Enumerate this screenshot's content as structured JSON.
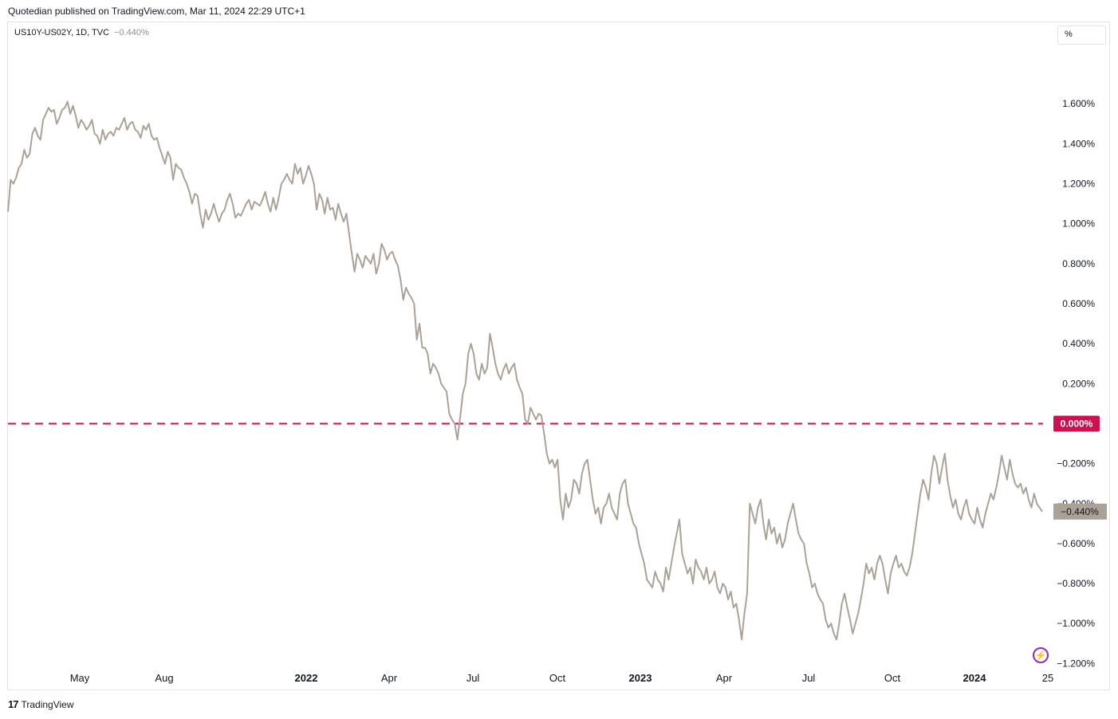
{
  "publisher": "Quotedian published on TradingView.com, Mar 11, 2024 22:29 UTC+1",
  "legend": {
    "symbol": "US10Y-US02Y, 1D, TVC",
    "value": "−0.440%"
  },
  "scale_button": "%",
  "footer": {
    "logo": "17",
    "brand": "TradingView"
  },
  "colors": {
    "series": "#aba297",
    "zero_line": "#cc1050",
    "grid_text": "#131722"
  },
  "chart_data": {
    "type": "line",
    "series": [
      {
        "values": [
          1.06,
          1.22,
          1.2,
          1.23,
          1.28,
          1.3,
          1.37,
          1.33,
          1.35,
          1.45,
          1.48,
          1.44,
          1.42,
          1.52,
          1.55,
          1.58,
          1.56,
          1.57,
          1.5,
          1.53,
          1.57,
          1.58,
          1.61,
          1.55,
          1.59,
          1.54,
          1.48,
          1.52,
          1.5,
          1.47,
          1.49,
          1.52,
          1.45,
          1.44,
          1.4,
          1.47,
          1.42,
          1.45,
          1.46,
          1.44,
          1.48,
          1.47,
          1.5,
          1.53,
          1.47,
          1.5,
          1.51,
          1.47,
          1.46,
          1.43,
          1.49,
          1.47,
          1.5,
          1.44,
          1.42,
          1.43,
          1.38,
          1.34,
          1.3,
          1.36,
          1.33,
          1.22,
          1.3,
          1.28,
          1.27,
          1.23,
          1.2,
          1.16,
          1.1,
          1.15,
          1.14,
          1.05,
          0.98,
          1.07,
          1.02,
          1.05,
          1.1,
          1.05,
          1.01,
          1.05,
          1.07,
          1.12,
          1.15,
          1.1,
          1.03,
          1.05,
          1.04,
          1.07,
          1.1,
          1.12,
          1.07,
          1.11,
          1.1,
          1.09,
          1.12,
          1.16,
          1.1,
          1.06,
          1.13,
          1.07,
          1.13,
          1.2,
          1.22,
          1.25,
          1.22,
          1.2,
          1.3,
          1.25,
          1.28,
          1.2,
          1.24,
          1.29,
          1.25,
          1.2,
          1.07,
          1.15,
          1.12,
          1.05,
          1.13,
          1.07,
          1.08,
          1.02,
          1.1,
          1.05,
          1.01,
          1.05,
          0.95,
          0.85,
          0.76,
          0.85,
          0.82,
          0.78,
          0.84,
          0.82,
          0.8,
          0.85,
          0.75,
          0.8,
          0.9,
          0.87,
          0.82,
          0.85,
          0.86,
          0.82,
          0.79,
          0.72,
          0.62,
          0.68,
          0.65,
          0.63,
          0.6,
          0.42,
          0.5,
          0.38,
          0.38,
          0.35,
          0.25,
          0.3,
          0.28,
          0.25,
          0.2,
          0.18,
          0.16,
          0.05,
          0.02,
          0.0,
          -0.08,
          0.03,
          0.15,
          0.2,
          0.35,
          0.4,
          0.35,
          0.25,
          0.22,
          0.3,
          0.25,
          0.28,
          0.45,
          0.38,
          0.3,
          0.25,
          0.22,
          0.27,
          0.3,
          0.25,
          0.28,
          0.3,
          0.22,
          0.18,
          0.15,
          0.02,
          0.0,
          0.08,
          0.05,
          0.02,
          0.05,
          0.04,
          -0.05,
          -0.15,
          -0.2,
          -0.18,
          -0.22,
          -0.18,
          -0.38,
          -0.48,
          -0.35,
          -0.42,
          -0.38,
          -0.28,
          -0.3,
          -0.35,
          -0.25,
          -0.2,
          -0.18,
          -0.28,
          -0.38,
          -0.45,
          -0.42,
          -0.5,
          -0.42,
          -0.4,
          -0.35,
          -0.42,
          -0.45,
          -0.48,
          -0.35,
          -0.3,
          -0.28,
          -0.4,
          -0.45,
          -0.5,
          -0.52,
          -0.6,
          -0.65,
          -0.7,
          -0.78,
          -0.8,
          -0.82,
          -0.74,
          -0.78,
          -0.8,
          -0.84,
          -0.72,
          -0.78,
          -0.7,
          -0.62,
          -0.55,
          -0.48,
          -0.65,
          -0.7,
          -0.75,
          -0.72,
          -0.8,
          -0.68,
          -0.72,
          -0.74,
          -0.78,
          -0.72,
          -0.8,
          -0.78,
          -0.74,
          -0.82,
          -0.85,
          -0.8,
          -0.82,
          -0.88,
          -0.84,
          -0.92,
          -0.9,
          -0.98,
          -1.08,
          -0.95,
          -0.85,
          -0.4,
          -0.45,
          -0.5,
          -0.42,
          -0.38,
          -0.5,
          -0.58,
          -0.48,
          -0.55,
          -0.52,
          -0.6,
          -0.55,
          -0.62,
          -0.58,
          -0.5,
          -0.45,
          -0.4,
          -0.48,
          -0.55,
          -0.58,
          -0.6,
          -0.7,
          -0.75,
          -0.82,
          -0.8,
          -0.85,
          -0.88,
          -0.9,
          -0.98,
          -1.02,
          -1.0,
          -1.05,
          -1.08,
          -1.0,
          -0.9,
          -0.85,
          -0.92,
          -0.98,
          -1.05,
          -1.0,
          -0.95,
          -0.88,
          -0.8,
          -0.7,
          -0.75,
          -0.72,
          -0.78,
          -0.7,
          -0.66,
          -0.7,
          -0.78,
          -0.85,
          -0.75,
          -0.7,
          -0.66,
          -0.72,
          -0.7,
          -0.74,
          -0.76,
          -0.72,
          -0.65,
          -0.55,
          -0.45,
          -0.35,
          -0.28,
          -0.32,
          -0.38,
          -0.25,
          -0.16,
          -0.2,
          -0.3,
          -0.22,
          -0.15,
          -0.28,
          -0.36,
          -0.42,
          -0.38,
          -0.45,
          -0.48,
          -0.42,
          -0.38,
          -0.45,
          -0.48,
          -0.5,
          -0.42,
          -0.48,
          -0.52,
          -0.45,
          -0.4,
          -0.35,
          -0.38,
          -0.32,
          -0.25,
          -0.16,
          -0.22,
          -0.28,
          -0.18,
          -0.25,
          -0.3,
          -0.32,
          -0.3,
          -0.35,
          -0.32,
          -0.38,
          -0.42,
          -0.35,
          -0.4,
          -0.42,
          -0.44
        ]
      }
    ],
    "x_ticks": [
      {
        "label": "May",
        "bold": false
      },
      {
        "label": "Aug",
        "bold": false
      },
      {
        "label": "2022",
        "bold": true
      },
      {
        "label": "Apr",
        "bold": false
      },
      {
        "label": "Jul",
        "bold": false
      },
      {
        "label": "Oct",
        "bold": false
      },
      {
        "label": "2023",
        "bold": true
      },
      {
        "label": "Apr",
        "bold": false
      },
      {
        "label": "Jul",
        "bold": false
      },
      {
        "label": "Oct",
        "bold": false
      },
      {
        "label": "2024",
        "bold": true
      },
      {
        "label": "25",
        "bold": false
      }
    ],
    "y_ticks": [
      1.6,
      1.4,
      1.2,
      1.0,
      0.8,
      0.6,
      0.4,
      0.2,
      -0.2,
      -0.4,
      -0.6,
      -0.8,
      -1.0,
      -1.2
    ],
    "y_tick_labels": [
      "1.600%",
      "1.400%",
      "1.200%",
      "1.000%",
      "0.800%",
      "0.600%",
      "0.400%",
      "0.200%",
      "−0.200%",
      "−0.400%",
      "−0.600%",
      "−0.800%",
      "−1.000%",
      "−1.200%"
    ],
    "ylim": [
      -1.33,
      1.88
    ],
    "zero_line": {
      "value": 0.0,
      "label": "0.000%",
      "style": "dashed"
    },
    "last_value": {
      "value": -0.44,
      "label": "−0.440%"
    },
    "grid": false
  }
}
